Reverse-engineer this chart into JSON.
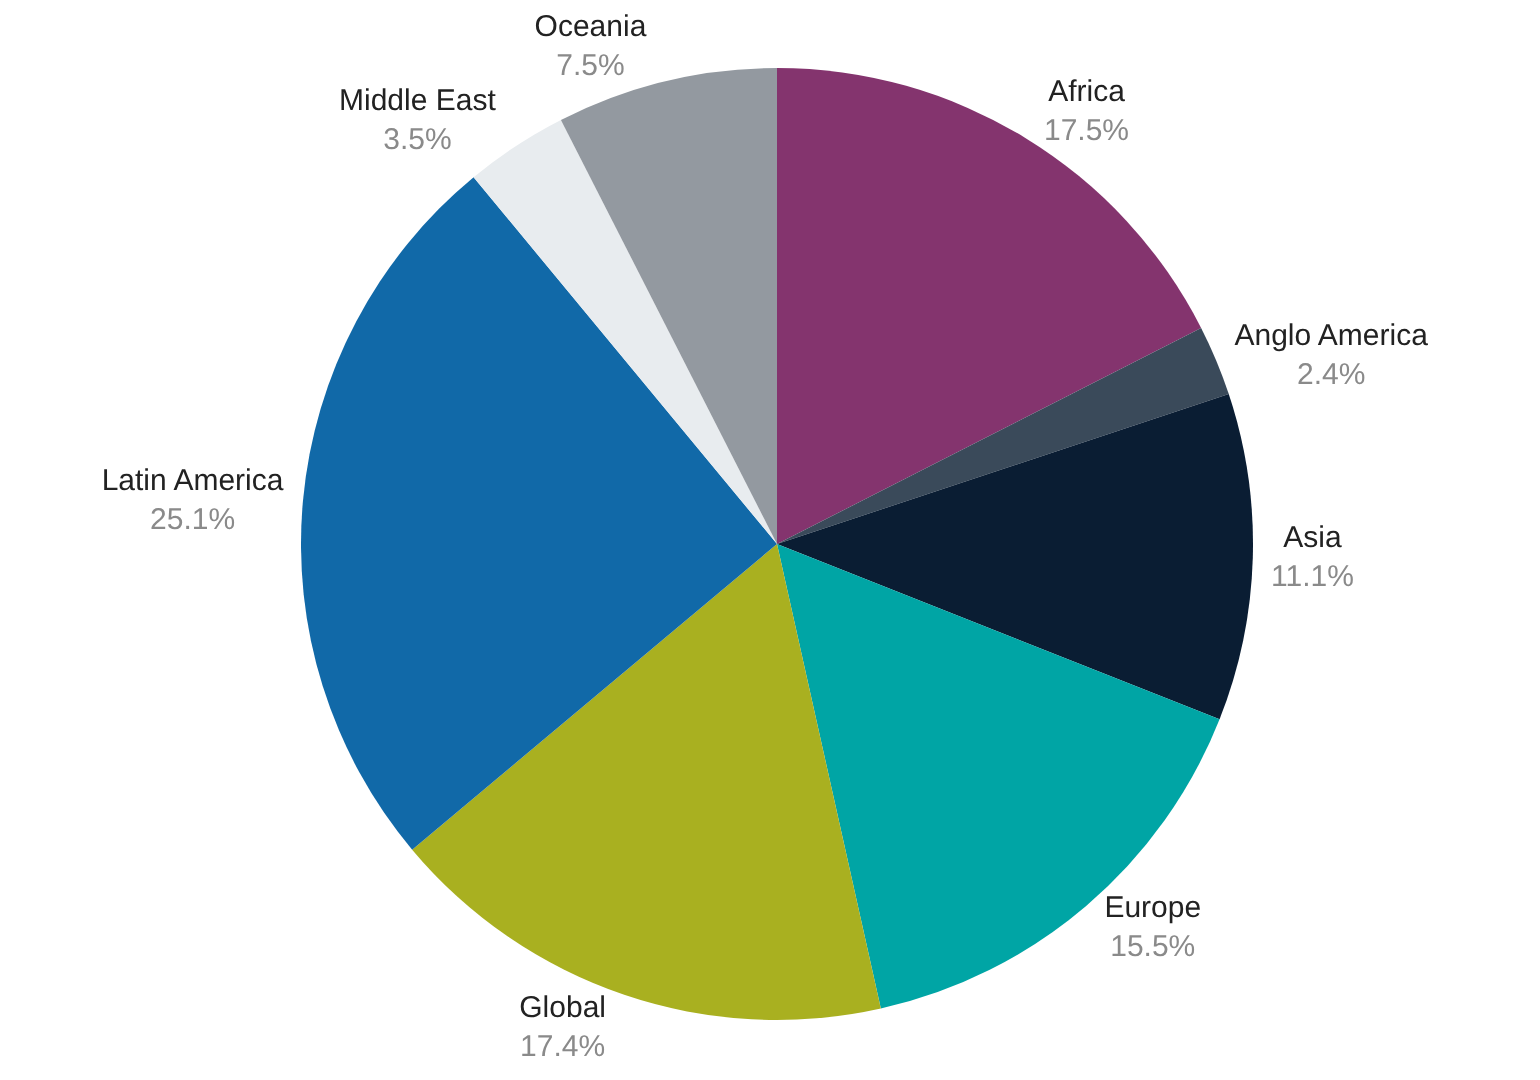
{
  "chart_data": {
    "type": "pie",
    "categories": [
      "Africa",
      "Anglo America",
      "Asia",
      "Europe",
      "Global",
      "Latin America",
      "Middle East",
      "Oceania"
    ],
    "values": [
      17.5,
      2.4,
      11.1,
      15.5,
      17.4,
      25.1,
      3.5,
      7.5
    ],
    "value_labels": [
      "17.5%",
      "2.4%",
      "11.1%",
      "15.5%",
      "17.4%",
      "25.1%",
      "3.5%",
      "7.5%"
    ],
    "colors": [
      "#84346e",
      "#3a4a5a",
      "#0a1d33",
      "#00a5a5",
      "#a9b020",
      "#1169a8",
      "#e8ecef",
      "#9399a0"
    ],
    "legend": false
  }
}
